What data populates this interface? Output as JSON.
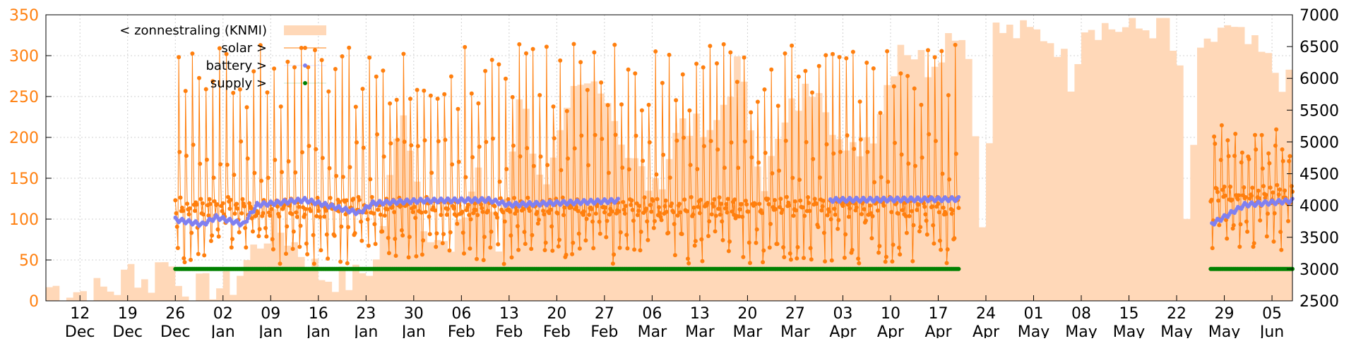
{
  "chart_data": {
    "type": "line",
    "y_left": {
      "lim": [
        0,
        350
      ],
      "ticks": [
        0,
        50,
        100,
        150,
        200,
        250,
        300,
        350
      ]
    },
    "y_right": {
      "lim": [
        2500,
        7000
      ],
      "ticks": [
        2500,
        3000,
        3500,
        4000,
        4500,
        5000,
        5500,
        6000,
        6500,
        7000
      ]
    },
    "x_range": [
      "2017-12-07",
      "2018-06-08"
    ],
    "x_ticks": [
      {
        "date": "2017-12-12",
        "day": "12",
        "month": "Dec"
      },
      {
        "date": "2017-12-19",
        "day": "19",
        "month": "Dec"
      },
      {
        "date": "2017-12-26",
        "day": "26",
        "month": "Dec"
      },
      {
        "date": "2018-01-02",
        "day": "02",
        "month": "Jan"
      },
      {
        "date": "2018-01-09",
        "day": "09",
        "month": "Jan"
      },
      {
        "date": "2018-01-16",
        "day": "16",
        "month": "Jan"
      },
      {
        "date": "2018-01-23",
        "day": "23",
        "month": "Jan"
      },
      {
        "date": "2018-01-30",
        "day": "30",
        "month": "Jan"
      },
      {
        "date": "2018-02-06",
        "day": "06",
        "month": "Feb"
      },
      {
        "date": "2018-02-13",
        "day": "13",
        "month": "Feb"
      },
      {
        "date": "2018-02-20",
        "day": "20",
        "month": "Feb"
      },
      {
        "date": "2018-02-27",
        "day": "27",
        "month": "Feb"
      },
      {
        "date": "2018-03-06",
        "day": "06",
        "month": "Mar"
      },
      {
        "date": "2018-03-13",
        "day": "13",
        "month": "Mar"
      },
      {
        "date": "2018-03-20",
        "day": "20",
        "month": "Mar"
      },
      {
        "date": "2018-03-27",
        "day": "27",
        "month": "Mar"
      },
      {
        "date": "2018-04-03",
        "day": "03",
        "month": "Apr"
      },
      {
        "date": "2018-04-10",
        "day": "10",
        "month": "Apr"
      },
      {
        "date": "2018-04-17",
        "day": "17",
        "month": "Apr"
      },
      {
        "date": "2018-04-24",
        "day": "24",
        "month": "Apr"
      },
      {
        "date": "2018-05-01",
        "day": "01",
        "month": "May"
      },
      {
        "date": "2018-05-08",
        "day": "08",
        "month": "May"
      },
      {
        "date": "2018-05-15",
        "day": "15",
        "month": "May"
      },
      {
        "date": "2018-05-22",
        "day": "22",
        "month": "May"
      },
      {
        "date": "2018-05-29",
        "day": "29",
        "month": "May"
      },
      {
        "date": "2018-06-05",
        "day": "05",
        "month": "Jun"
      }
    ],
    "grid": true,
    "legend_position": "top-left",
    "series": [
      {
        "name": "< zonnestraling (KNMI)",
        "type": "area",
        "axis": "right",
        "color": "#ffd8b8",
        "points": [
          [
            "2017-12-07",
            2720
          ],
          [
            "2017-12-12",
            2650
          ],
          [
            "2017-12-17",
            2700
          ],
          [
            "2017-12-19",
            3000
          ],
          [
            "2017-12-22",
            2760
          ],
          [
            "2017-12-24",
            3280
          ],
          [
            "2017-12-26",
            2740
          ],
          [
            "2017-12-30",
            2700
          ],
          [
            "2018-01-03",
            2750
          ],
          [
            "2018-01-06",
            3300
          ],
          [
            "2018-01-09",
            3700
          ],
          [
            "2018-01-12",
            3400
          ],
          [
            "2018-01-16",
            2900
          ],
          [
            "2018-01-20",
            2800
          ],
          [
            "2018-01-24",
            3100
          ],
          [
            "2018-01-28",
            5600
          ],
          [
            "2018-01-31",
            3800
          ],
          [
            "2018-02-04",
            3200
          ],
          [
            "2018-02-08",
            4600
          ],
          [
            "2018-02-11",
            3300
          ],
          [
            "2018-02-14",
            5800
          ],
          [
            "2018-02-18",
            4200
          ],
          [
            "2018-02-22",
            5700
          ],
          [
            "2018-02-26",
            6000
          ],
          [
            "2018-03-02",
            4800
          ],
          [
            "2018-03-06",
            4200
          ],
          [
            "2018-03-10",
            5400
          ],
          [
            "2018-03-14",
            5000
          ],
          [
            "2018-03-18",
            6200
          ],
          [
            "2018-03-22",
            4400
          ],
          [
            "2018-03-26",
            5500
          ],
          [
            "2018-03-30",
            6000
          ],
          [
            "2018-04-03",
            4700
          ],
          [
            "2018-04-07",
            5200
          ],
          [
            "2018-04-11",
            6600
          ],
          [
            "2018-04-15",
            6200
          ],
          [
            "2018-04-19",
            6800
          ],
          [
            "2018-04-21",
            6500
          ],
          [
            "2018-04-23",
            3700
          ],
          [
            "2018-04-25",
            6750
          ],
          [
            "2018-04-29",
            6700
          ],
          [
            "2018-05-02",
            6700
          ],
          [
            "2018-05-04",
            6550
          ],
          [
            "2018-05-06",
            6000
          ],
          [
            "2018-05-08",
            6880
          ],
          [
            "2018-05-12",
            6800
          ],
          [
            "2018-05-16",
            6770
          ],
          [
            "2018-05-20",
            6870
          ],
          [
            "2018-05-22",
            6000
          ],
          [
            "2018-05-23",
            3700
          ],
          [
            "2018-05-25",
            6250
          ],
          [
            "2018-05-28",
            6800
          ],
          [
            "2018-05-31",
            6600
          ],
          [
            "2018-06-03",
            6350
          ],
          [
            "2018-06-06",
            6000
          ],
          [
            "2018-06-08",
            5800
          ]
        ]
      },
      {
        "name": "solar >",
        "type": "line-points",
        "axis": "left",
        "color": "#ff7f0e",
        "segments": [
          {
            "start": "2017-12-26",
            "end": "2018-04-20",
            "baseline": 115,
            "day_low": 45,
            "day_high_min": 230,
            "day_high_max": 315
          },
          {
            "start": "2018-05-27",
            "end": "2018-06-08",
            "baseline": 130,
            "day_low": 60,
            "day_high_min": 160,
            "day_high_max": 210
          }
        ]
      },
      {
        "name": "battery >",
        "type": "points",
        "axis": "left",
        "color": "#8080f0",
        "points": [
          [
            "2017-12-26",
            102
          ],
          [
            "2017-12-30",
            96
          ],
          [
            "2018-01-01",
            105
          ],
          [
            "2018-01-05",
            96
          ],
          [
            "2018-01-07",
            120
          ],
          [
            "2018-01-14",
            126
          ],
          [
            "2018-01-22",
            110
          ],
          [
            "2018-01-24",
            122
          ],
          [
            "2018-01-31",
            125
          ],
          [
            "2018-02-10",
            126
          ],
          [
            "2018-02-13",
            120
          ],
          [
            "2018-03-01",
            125
          ],
          [
            "2018-04-01",
            126
          ],
          [
            "2018-04-20",
            127
          ],
          [
            "2018-05-27",
            96
          ],
          [
            "2018-05-29",
            105
          ],
          [
            "2018-06-01",
            120
          ],
          [
            "2018-06-08",
            125
          ]
        ]
      },
      {
        "name": "supply >",
        "type": "points",
        "axis": "left",
        "color": "#008000",
        "segments": [
          {
            "start": "2017-12-26",
            "end": "2018-04-20",
            "value": 39
          },
          {
            "start": "2018-05-27",
            "end": "2018-06-08",
            "value": 39
          }
        ]
      }
    ]
  }
}
